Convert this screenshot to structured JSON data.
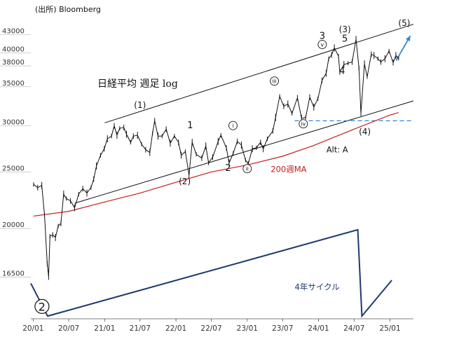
{
  "source_label": "(出所) Bloomberg",
  "chart_title": "日経平均 週足 log",
  "colors": {
    "price": "#111111",
    "ma": "#c41e1e",
    "cycle": "#1f3a6e",
    "dashed": "#2f86d6",
    "projection": "#2f86d6",
    "ma_label": "#c41e1e",
    "cycle_label": "#1f3a6e",
    "grid": "#b0b0b0"
  },
  "chart_data": {
    "type": "line",
    "title": "日経平均 週足 log",
    "y_scale": "log",
    "ylim": [
      14000,
      46000
    ],
    "xlim": [
      "2019-12-20",
      "2025-05-01"
    ],
    "y_ticks": [
      43000,
      40000,
      38000,
      35000,
      30000,
      25000,
      20000,
      16500
    ],
    "x_ticks": [
      {
        "date": "2020-01-01",
        "label": "20/01"
      },
      {
        "date": "2020-07-01",
        "label": "20/07"
      },
      {
        "date": "2021-01-01",
        "label": "21/01"
      },
      {
        "date": "2021-07-01",
        "label": "21/07"
      },
      {
        "date": "2022-01-01",
        "label": "22/01"
      },
      {
        "date": "2022-07-01",
        "label": "22/07"
      },
      {
        "date": "2023-01-01",
        "label": "23/01"
      },
      {
        "date": "2023-07-01",
        "label": "23/07"
      },
      {
        "date": "2024-01-01",
        "label": "24/01"
      },
      {
        "date": "2024-07-01",
        "label": "24/07"
      },
      {
        "date": "2025-01-01",
        "label": "25/01"
      }
    ],
    "price_series": [
      [
        "2020-01-03",
        23800
      ],
      [
        "2020-01-24",
        23500
      ],
      [
        "2020-02-14",
        23700
      ],
      [
        "2020-02-28",
        21100
      ],
      [
        "2020-03-13",
        17400
      ],
      [
        "2020-03-20",
        16550
      ],
      [
        "2020-03-27",
        19400
      ],
      [
        "2020-04-10",
        19500
      ],
      [
        "2020-04-24",
        19300
      ],
      [
        "2020-05-08",
        20200
      ],
      [
        "2020-05-22",
        20400
      ],
      [
        "2020-06-05",
        22900
      ],
      [
        "2020-06-19",
        22500
      ],
      [
        "2020-07-10",
        22300
      ],
      [
        "2020-07-31",
        21700
      ],
      [
        "2020-08-21",
        22900
      ],
      [
        "2020-09-11",
        23400
      ],
      [
        "2020-10-02",
        23000
      ],
      [
        "2020-10-23",
        23500
      ],
      [
        "2020-11-06",
        24300
      ],
      [
        "2020-11-20",
        25600
      ],
      [
        "2020-12-11",
        26700
      ],
      [
        "2020-12-30",
        27400
      ],
      [
        "2021-01-15",
        28500
      ],
      [
        "2021-02-05",
        28800
      ],
      [
        "2021-02-19",
        30000
      ],
      [
        "2021-03-05",
        28900
      ],
      [
        "2021-03-19",
        29700
      ],
      [
        "2021-04-09",
        29800
      ],
      [
        "2021-04-23",
        29000
      ],
      [
        "2021-05-14",
        28100
      ],
      [
        "2021-05-28",
        28800
      ],
      [
        "2021-06-18",
        28900
      ],
      [
        "2021-07-09",
        27900
      ],
      [
        "2021-07-30",
        27300
      ],
      [
        "2021-08-20",
        27000
      ],
      [
        "2021-09-03",
        29100
      ],
      [
        "2021-09-14",
        30600
      ],
      [
        "2021-10-01",
        28800
      ],
      [
        "2021-10-22",
        28800
      ],
      [
        "2021-11-12",
        29600
      ],
      [
        "2021-12-03",
        28000
      ],
      [
        "2021-12-24",
        28800
      ],
      [
        "2022-01-14",
        28100
      ],
      [
        "2022-01-28",
        26700
      ],
      [
        "2022-02-18",
        27100
      ],
      [
        "2022-03-09",
        24700
      ],
      [
        "2022-03-25",
        28100
      ],
      [
        "2022-04-15",
        26800
      ],
      [
        "2022-05-13",
        26400
      ],
      [
        "2022-06-03",
        27700
      ],
      [
        "2022-06-17",
        25900
      ],
      [
        "2022-07-08",
        26500
      ],
      [
        "2022-08-05",
        28200
      ],
      [
        "2022-08-19",
        28900
      ],
      [
        "2022-09-16",
        27500
      ],
      [
        "2022-09-30",
        25900
      ],
      [
        "2022-10-21",
        26900
      ],
      [
        "2022-11-11",
        28200
      ],
      [
        "2022-12-02",
        27800
      ],
      [
        "2022-12-23",
        26200
      ],
      [
        "2023-01-06",
        25800
      ],
      [
        "2023-01-27",
        27400
      ],
      [
        "2023-02-17",
        27500
      ],
      [
        "2023-03-10",
        28100
      ],
      [
        "2023-03-24",
        27400
      ],
      [
        "2023-04-14",
        28500
      ],
      [
        "2023-05-12",
        29400
      ],
      [
        "2023-05-26",
        31000
      ],
      [
        "2023-06-16",
        33700
      ],
      [
        "2023-07-07",
        32400
      ],
      [
        "2023-07-28",
        32700
      ],
      [
        "2023-08-18",
        31500
      ],
      [
        "2023-09-15",
        33500
      ],
      [
        "2023-10-06",
        30900
      ],
      [
        "2023-10-27",
        30990
      ],
      [
        "2023-11-17",
        33600
      ],
      [
        "2023-12-08",
        32300
      ],
      [
        "2023-12-29",
        33400
      ],
      [
        "2024-01-19",
        35900
      ],
      [
        "2024-02-09",
        36900
      ],
      [
        "2024-02-22",
        39100
      ],
      [
        "2024-03-08",
        39700
      ],
      [
        "2024-03-22",
        40800
      ],
      [
        "2024-04-12",
        39500
      ],
      [
        "2024-04-19",
        37100
      ],
      [
        "2024-05-10",
        38200
      ],
      [
        "2024-05-31",
        38400
      ],
      [
        "2024-06-21",
        38600
      ],
      [
        "2024-07-11",
        42200
      ],
      [
        "2024-07-26",
        37700
      ],
      [
        "2024-08-05",
        31500
      ],
      [
        "2024-08-23",
        38300
      ],
      [
        "2024-09-06",
        36400
      ],
      [
        "2024-09-27",
        39800
      ],
      [
        "2024-10-11",
        39600
      ],
      [
        "2024-10-31",
        39100
      ],
      [
        "2024-11-15",
        38600
      ],
      [
        "2024-12-06",
        39100
      ],
      [
        "2024-12-27",
        40300
      ],
      [
        "2025-01-17",
        38500
      ],
      [
        "2025-01-31",
        39600
      ],
      [
        "2025-02-14",
        39150
      ]
    ],
    "moving_average_200w": [
      [
        "2020-01-03",
        21000
      ],
      [
        "2020-07-01",
        21400
      ],
      [
        "2021-01-01",
        22200
      ],
      [
        "2021-07-01",
        23000
      ],
      [
        "2022-01-01",
        24000
      ],
      [
        "2022-07-01",
        25000
      ],
      [
        "2023-01-01",
        25700
      ],
      [
        "2023-07-01",
        26600
      ],
      [
        "2023-12-01",
        27700
      ],
      [
        "2024-07-01",
        29600
      ],
      [
        "2025-01-01",
        31300
      ],
      [
        "2025-02-14",
        31600
      ]
    ],
    "channel_upper": [
      [
        "2021-01-01",
        30350
      ],
      [
        "2025-05-01",
        44800
      ]
    ],
    "channel_lower": [
      [
        "2020-08-01",
        22100
      ],
      [
        "2025-05-01",
        33100
      ]
    ],
    "dashed_level": {
      "value": 30600,
      "from": "2023-09-01",
      "to": "2025-05-01"
    },
    "projection": {
      "from": [
        "2025-02-01",
        38800
      ],
      "to": [
        "2025-04-15",
        42800
      ]
    },
    "cycle_path": [
      [
        "2019-12-20",
        16100
      ],
      [
        "2020-03-15",
        14150
      ],
      [
        "2024-07-20",
        19900
      ],
      [
        "2024-08-10",
        14150
      ],
      [
        "2025-01-10",
        16300
      ]
    ],
    "wave_labels": [
      {
        "text": "(1)",
        "x": "2021-07-01",
        "y": 32200,
        "style": "paren"
      },
      {
        "text": "1",
        "x": "2022-03-15",
        "y": 29700,
        "style": "plain"
      },
      {
        "text": "i",
        "x": "2022-10-20",
        "y": 29700,
        "style": "circle"
      },
      {
        "text": "2",
        "x": "2022-09-25",
        "y": 25100,
        "style": "plain"
      },
      {
        "text": "ii",
        "x": "2023-01-01",
        "y": 25050,
        "style": "circle"
      },
      {
        "text": "(2)",
        "x": "2022-02-15",
        "y": 23800,
        "style": "paren"
      },
      {
        "text": "iii",
        "x": "2023-05-20",
        "y": 35400,
        "style": "circle"
      },
      {
        "text": "iv",
        "x": "2023-10-15",
        "y": 29900,
        "style": "circle"
      },
      {
        "text": "3",
        "x": "2024-01-20",
        "y": 42300,
        "style": "plain"
      },
      {
        "text": "v",
        "x": "2024-01-20",
        "y": 40900,
        "style": "circle"
      },
      {
        "text": "(3)",
        "x": "2024-05-15",
        "y": 43400,
        "style": "paren"
      },
      {
        "text": "5",
        "x": "2024-05-15",
        "y": 41800,
        "style": "plain"
      },
      {
        "text": "4",
        "x": "2024-05-01",
        "y": 36800,
        "style": "plain"
      },
      {
        "text": "(4)",
        "x": "2024-08-25",
        "y": 29000,
        "style": "paren"
      },
      {
        "text": "(5)",
        "x": "2025-03-15",
        "y": 44500,
        "style": "paren"
      }
    ],
    "annotations": [
      {
        "text": "Alt: A",
        "x": "2024-02-10",
        "y": 27000,
        "color": "#111111"
      },
      {
        "text": "200週MA",
        "x": "2023-05-01",
        "y": 25000,
        "color": "#c41e1e"
      },
      {
        "text": "4年サイクル",
        "x": "2023-09-01",
        "y": 15700,
        "color": "#1f3a6e"
      }
    ],
    "cycle_start_label": {
      "text": "2",
      "x": "2020-02-15",
      "y": 14700
    },
    "title_position": {
      "x": "2020-11-25",
      "y": 35000
    }
  }
}
